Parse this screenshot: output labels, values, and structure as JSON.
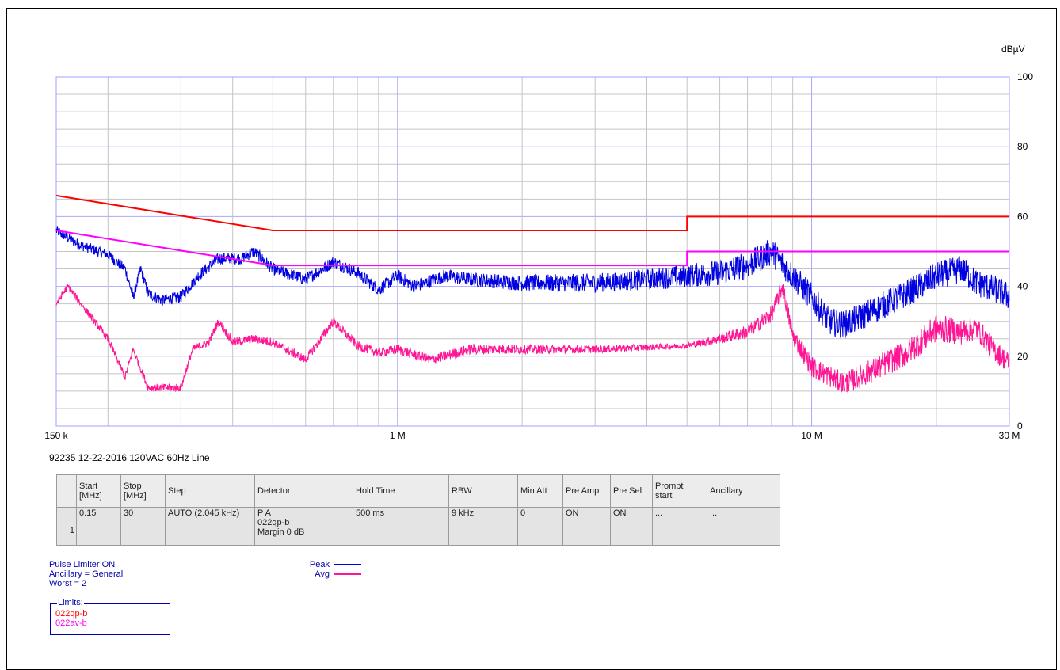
{
  "chart_data": {
    "type": "line",
    "xscale": "log",
    "xlim_mhz": [
      0.15,
      30
    ],
    "ylim": [
      0,
      100
    ],
    "ylabel": "dBµV",
    "yticks": [
      0,
      20,
      40,
      60,
      80,
      100
    ],
    "xtick_labels": [
      {
        "mhz": 0.15,
        "label": "150 k"
      },
      {
        "mhz": 1,
        "label": "1 M"
      },
      {
        "mhz": 10,
        "label": "10 M"
      },
      {
        "mhz": 30,
        "label": "30 M"
      }
    ],
    "grid": true,
    "limits": [
      {
        "name": "022qp-b",
        "color": "#ff0000",
        "points": [
          [
            0.15,
            66
          ],
          [
            0.5,
            56
          ],
          [
            5,
            56
          ],
          [
            5,
            60
          ],
          [
            30,
            60
          ]
        ]
      },
      {
        "name": "022av-b",
        "color": "#ff00ff",
        "points": [
          [
            0.15,
            56
          ],
          [
            0.5,
            46
          ],
          [
            5,
            46
          ],
          [
            5,
            50
          ],
          [
            30,
            50
          ]
        ]
      }
    ],
    "series": [
      {
        "name": "Peak",
        "color": "#0000e0",
        "points": [
          [
            0.15,
            56
          ],
          [
            0.17,
            52
          ],
          [
            0.2,
            49
          ],
          [
            0.22,
            45
          ],
          [
            0.23,
            37
          ],
          [
            0.24,
            45
          ],
          [
            0.25,
            38
          ],
          [
            0.27,
            36
          ],
          [
            0.3,
            37
          ],
          [
            0.33,
            43
          ],
          [
            0.37,
            48
          ],
          [
            0.42,
            48
          ],
          [
            0.45,
            50
          ],
          [
            0.5,
            45
          ],
          [
            0.6,
            42
          ],
          [
            0.7,
            47
          ],
          [
            0.8,
            44
          ],
          [
            0.9,
            39
          ],
          [
            1.0,
            43
          ],
          [
            1.1,
            40
          ],
          [
            1.3,
            43
          ],
          [
            1.5,
            42
          ],
          [
            2,
            41
          ],
          [
            3,
            41
          ],
          [
            4,
            42
          ],
          [
            5,
            43
          ],
          [
            6,
            44
          ],
          [
            7,
            46
          ],
          [
            8,
            50
          ],
          [
            9,
            43
          ],
          [
            10,
            37
          ],
          [
            11,
            30
          ],
          [
            12,
            29
          ],
          [
            14,
            33
          ],
          [
            17,
            38
          ],
          [
            20,
            43
          ],
          [
            23,
            45
          ],
          [
            25,
            41
          ],
          [
            28,
            39
          ],
          [
            30,
            37
          ]
        ],
        "noise_db": [
          [
            0.15,
            1.5
          ],
          [
            1.5,
            2
          ],
          [
            4,
            3
          ],
          [
            7,
            4
          ],
          [
            10,
            4
          ],
          [
            30,
            4
          ]
        ]
      },
      {
        "name": "Avg",
        "color": "#ff1493",
        "points": [
          [
            0.15,
            35
          ],
          [
            0.16,
            40
          ],
          [
            0.18,
            32
          ],
          [
            0.2,
            25
          ],
          [
            0.22,
            14
          ],
          [
            0.23,
            22
          ],
          [
            0.25,
            11
          ],
          [
            0.3,
            11
          ],
          [
            0.32,
            22
          ],
          [
            0.35,
            24
          ],
          [
            0.37,
            30
          ],
          [
            0.4,
            24
          ],
          [
            0.45,
            25
          ],
          [
            0.5,
            24
          ],
          [
            0.6,
            19
          ],
          [
            0.7,
            30
          ],
          [
            0.8,
            23
          ],
          [
            0.9,
            21
          ],
          [
            1.0,
            22
          ],
          [
            1.2,
            19
          ],
          [
            1.5,
            22
          ],
          [
            2,
            22
          ],
          [
            3,
            22
          ],
          [
            5,
            23
          ],
          [
            6,
            25
          ],
          [
            7,
            27
          ],
          [
            8,
            32
          ],
          [
            8.5,
            40
          ],
          [
            9,
            26
          ],
          [
            10,
            17
          ],
          [
            12,
            12
          ],
          [
            14,
            16
          ],
          [
            17,
            21
          ],
          [
            20,
            28
          ],
          [
            23,
            27
          ],
          [
            25,
            28
          ],
          [
            28,
            21
          ],
          [
            30,
            18
          ]
        ],
        "noise_db": [
          [
            0.15,
            1
          ],
          [
            1.5,
            1.5
          ],
          [
            5,
            0.8
          ],
          [
            7,
            2
          ],
          [
            10,
            3
          ],
          [
            20,
            4
          ],
          [
            30,
            3
          ]
        ]
      }
    ]
  },
  "subtitle": "92235 12-22-2016 120VAC 60Hz Line",
  "settings_table": {
    "headers": [
      "",
      "Start\n[MHz]",
      "Stop\n[MHz]",
      "Step",
      "Detector",
      "Hold Time",
      "RBW",
      "Min Att",
      "Pre Amp",
      "Pre Sel",
      "Prompt\nstart",
      "Ancillary"
    ],
    "rows": [
      [
        "1",
        "0.15",
        "30",
        "AUTO (2.045 kHz)",
        "P A\n022qp-b\nMargin 0 dB",
        "500 ms",
        "9 kHz",
        "0",
        "ON",
        "ON",
        "...",
        "..."
      ]
    ]
  },
  "info_lines": [
    "Pulse Limiter ON",
    "Ancillary = General",
    "Worst = 2"
  ],
  "limits_box": {
    "title": "Limits:",
    "items": [
      {
        "name": "022qp-b",
        "color": "#ff0000"
      },
      {
        "name": "022av-b",
        "color": "#ff00ff"
      }
    ]
  },
  "legend": [
    {
      "name": "Peak",
      "color": "#0000e0"
    },
    {
      "name": "Avg",
      "color": "#ff1493"
    }
  ]
}
